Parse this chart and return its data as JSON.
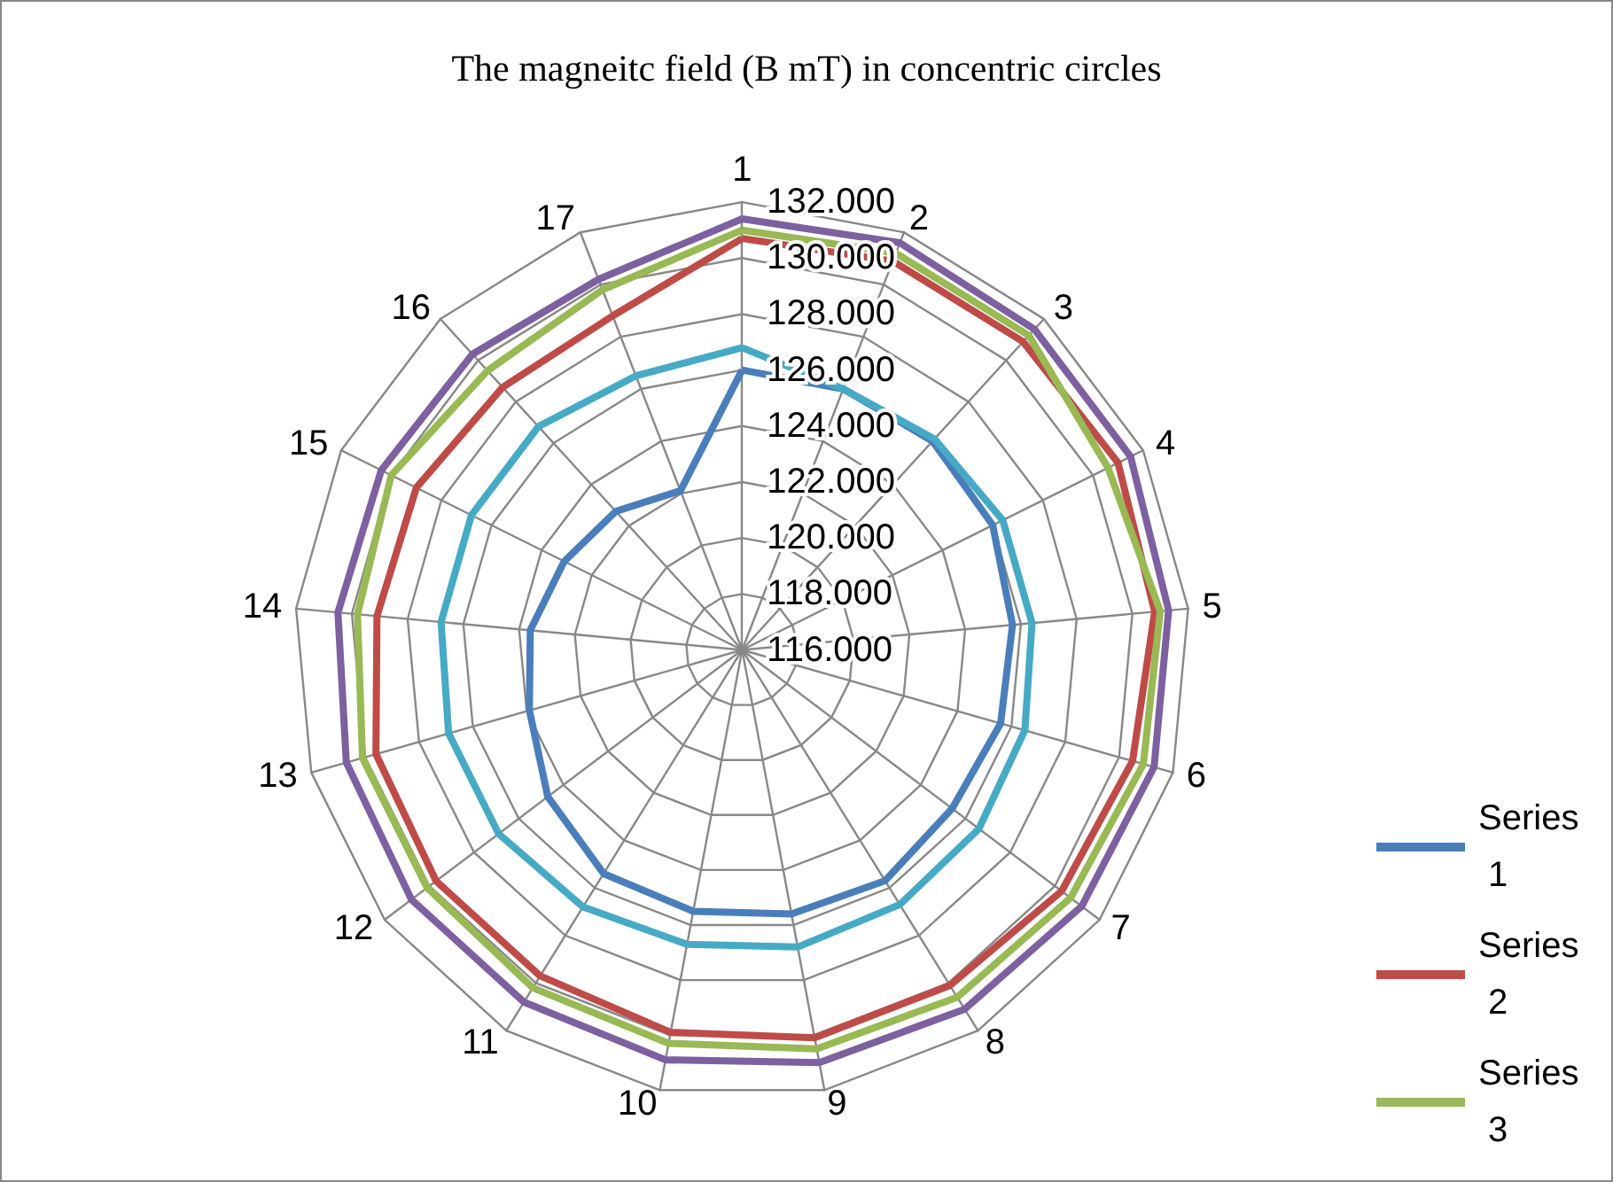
{
  "chart_data": {
    "type": "radar",
    "title": "The magneitc field (B mT) in concentric circles",
    "categories": [
      "1",
      "2",
      "3",
      "4",
      "5",
      "6",
      "7",
      "8",
      "9",
      "10",
      "11",
      "12",
      "13",
      "14",
      "15",
      "16",
      "17"
    ],
    "ylim": [
      116,
      132
    ],
    "yticks": [
      {
        "value": 116,
        "label": "116.000"
      },
      {
        "value": 118,
        "label": "118.000"
      },
      {
        "value": 120,
        "label": "120.000"
      },
      {
        "value": 122,
        "label": "122.000"
      },
      {
        "value": 124,
        "label": "124.000"
      },
      {
        "value": 126,
        "label": "126.000"
      },
      {
        "value": 128,
        "label": "128.000"
      },
      {
        "value": 130,
        "label": "130.000"
      },
      {
        "value": 132,
        "label": "132.000"
      }
    ],
    "grid": true,
    "legend": "right",
    "marker": "none",
    "series": [
      {
        "name": "Series 1",
        "color": "#4a7ebb",
        "values": [
          126.0,
          126.0,
          126.1,
          126.0,
          125.7,
          125.6,
          125.4,
          125.7,
          125.6,
          125.5,
          125.4,
          124.7,
          123.9,
          123.6,
          123.1,
          122.7,
          122.1
        ]
      },
      {
        "name": "Series 2",
        "color": "#be4b48",
        "values": [
          130.7,
          130.9,
          130.9,
          131.0,
          130.8,
          130.5,
          130.3,
          130.1,
          130.1,
          129.9,
          129.7,
          129.7,
          129.6,
          129.1,
          129.0,
          128.7,
          128.8
        ]
      },
      {
        "name": "Series 3",
        "color": "#98b954",
        "values": [
          131.0,
          131.2,
          131.2,
          130.6,
          131.0,
          130.9,
          130.7,
          130.6,
          130.5,
          130.3,
          130.2,
          130.1,
          130.1,
          129.8,
          130.0,
          129.5,
          129.8
        ]
      },
      {
        "color": "#46aac5",
        "values": [
          126.8,
          126.0,
          126.2,
          126.4,
          126.4,
          126.5,
          126.6,
          126.7,
          126.8,
          126.7,
          126.8,
          126.9,
          126.9,
          126.8,
          126.8,
          126.8,
          126.5
        ]
      },
      {
        "color": "#7d60a0",
        "values": [
          131.4,
          131.6,
          131.5,
          131.5,
          131.3,
          131.3,
          131.2,
          131.1,
          131.0,
          130.9,
          130.8,
          130.8,
          130.7,
          130.5,
          130.4,
          130.3,
          130.2
        ]
      }
    ]
  }
}
